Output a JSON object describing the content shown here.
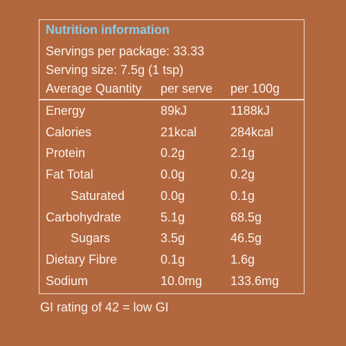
{
  "header": {
    "title": "Nutrition information",
    "servings": "Servings per package: 33.33",
    "serving_size": "Serving size: 7.5g (1 tsp)"
  },
  "table": {
    "columns": [
      "Average Quantity",
      "per serve",
      "per 100g"
    ],
    "rows": [
      [
        "Energy",
        "89kJ",
        "1188kJ"
      ],
      [
        "Calories",
        "21kcal",
        "284kcal"
      ],
      [
        "Protein",
        "0.2g",
        "2.1g"
      ],
      [
        "Fat Total",
        "0.0g",
        "0.2g"
      ],
      [
        "Saturated",
        "0.0g",
        "0.1g"
      ],
      [
        "Carbohydrate",
        "5.1g",
        "68.5g"
      ],
      [
        "Sugars",
        "3.5g",
        "46.5g"
      ],
      [
        "Dietary Fibre",
        "0.1g",
        "1.6g"
      ],
      [
        "Sodium",
        "10.0mg",
        "133.6mg"
      ]
    ]
  },
  "footer": "GI rating of 42 = low GI"
}
